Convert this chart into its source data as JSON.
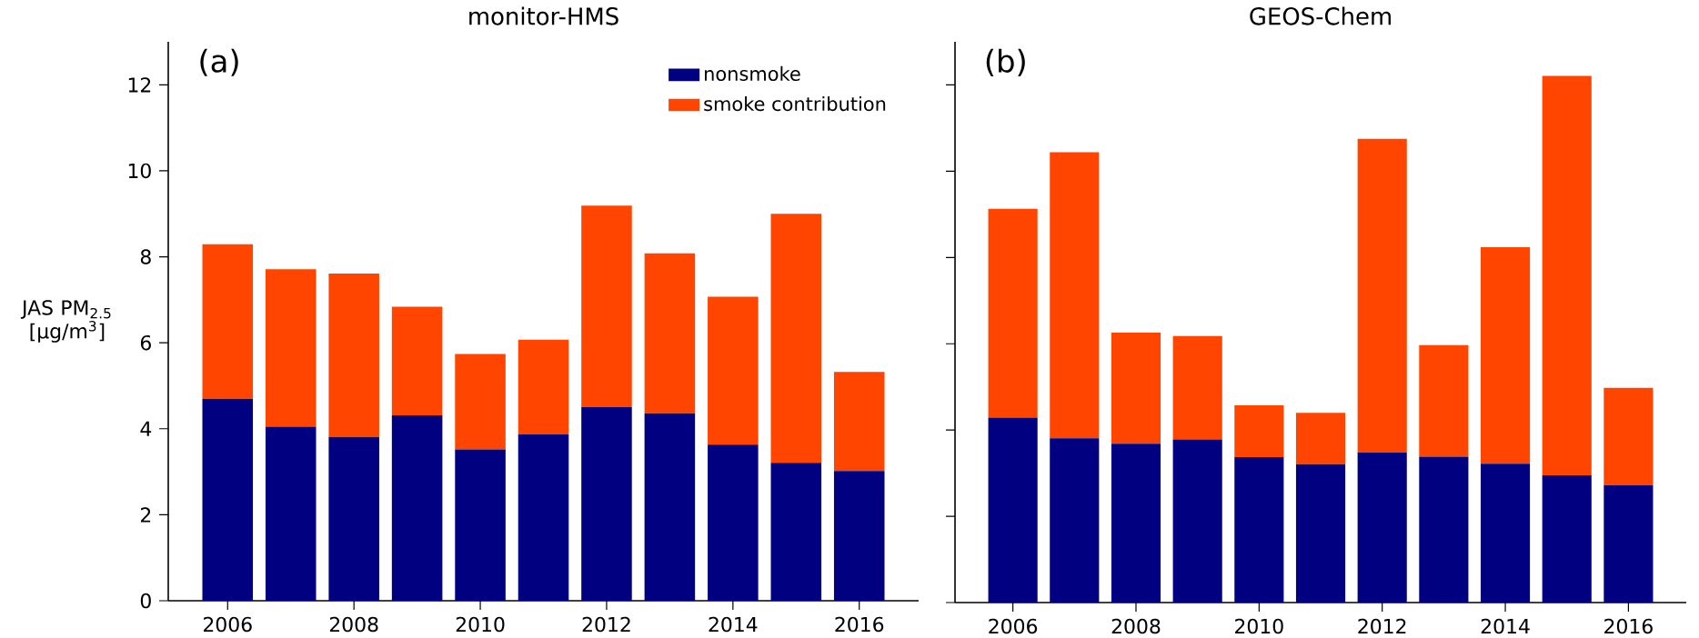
{
  "chart_data": [
    {
      "type": "bar",
      "stacked": true,
      "title": "monitor-HMS",
      "ylabel": "JAS PM$_{2.5}$ [μg/m$^{3}$]",
      "annotations": [
        "(a)"
      ],
      "x": [
        2006,
        2007,
        2008,
        2009,
        2010,
        2011,
        2012,
        2013,
        2014,
        2015,
        2016
      ],
      "xlim": [
        2005.06,
        2016.94
      ],
      "xticks": [
        2006,
        2008,
        2010,
        2012,
        2014,
        2016
      ],
      "ylim": [
        0,
        13
      ],
      "yticks": [
        0,
        2,
        4,
        6,
        8,
        10,
        12
      ],
      "legend": "top right",
      "series": [
        {
          "name": "nonsmoke",
          "color": "#000080",
          "values": [
            4.7,
            4.05,
            3.81,
            4.31,
            3.52,
            3.87,
            4.51,
            4.36,
            3.63,
            3.21,
            3.02
          ]
        },
        {
          "name": "smoke contribution",
          "color": "#ff4500",
          "values": [
            3.59,
            3.66,
            3.8,
            2.53,
            2.22,
            2.2,
            4.68,
            3.72,
            3.44,
            5.79,
            2.3
          ]
        }
      ]
    },
    {
      "type": "bar",
      "stacked": true,
      "title": "GEOS-Chem",
      "annotations": [
        "(b)"
      ],
      "tick_labels": "x",
      "x": [
        2006,
        2007,
        2008,
        2009,
        2010,
        2011,
        2012,
        2013,
        2014,
        2015,
        2016
      ],
      "xlim": [
        2005.06,
        2016.94
      ],
      "xticks": [
        2006,
        2008,
        2010,
        2012,
        2014,
        2016
      ],
      "ylim": [
        0,
        13
      ],
      "yticks": [
        0,
        2,
        4,
        6,
        8,
        10,
        12
      ],
      "series": [
        {
          "color": "#000080",
          "values": [
            4.29,
            3.81,
            3.68,
            3.78,
            3.37,
            3.21,
            3.48,
            3.38,
            3.22,
            2.95,
            2.72
          ]
        },
        {
          "color": "#ff4500",
          "values": [
            4.84,
            6.63,
            2.58,
            2.4,
            1.2,
            1.19,
            7.27,
            2.59,
            5.02,
            9.26,
            2.26
          ]
        }
      ]
    }
  ]
}
